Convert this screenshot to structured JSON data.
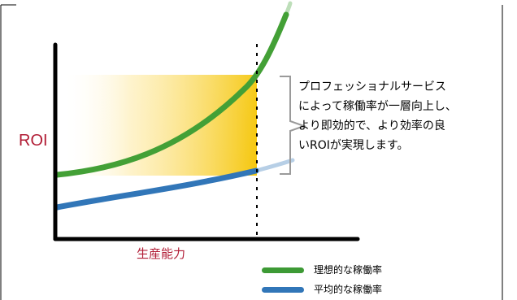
{
  "axes": {
    "y_label": "ROI",
    "x_label": "生産能力"
  },
  "annotation": {
    "lines": [
      "プロフェッショナルサービス",
      "によって稼働率が一層向上し、",
      "より即効的で、より効率の良",
      "いROIが実現します。"
    ]
  },
  "legend": {
    "items": [
      {
        "label": "理想的な稼働率",
        "color": "#3d9a35"
      },
      {
        "label": "平均的な稼働率",
        "color": "#3176b8"
      }
    ]
  },
  "colors": {
    "background": "#ffffff",
    "axis": "#000000",
    "highlight": "#f5c400",
    "accent_text": "#b11c35",
    "bracket": "#9a9a9a"
  }
}
